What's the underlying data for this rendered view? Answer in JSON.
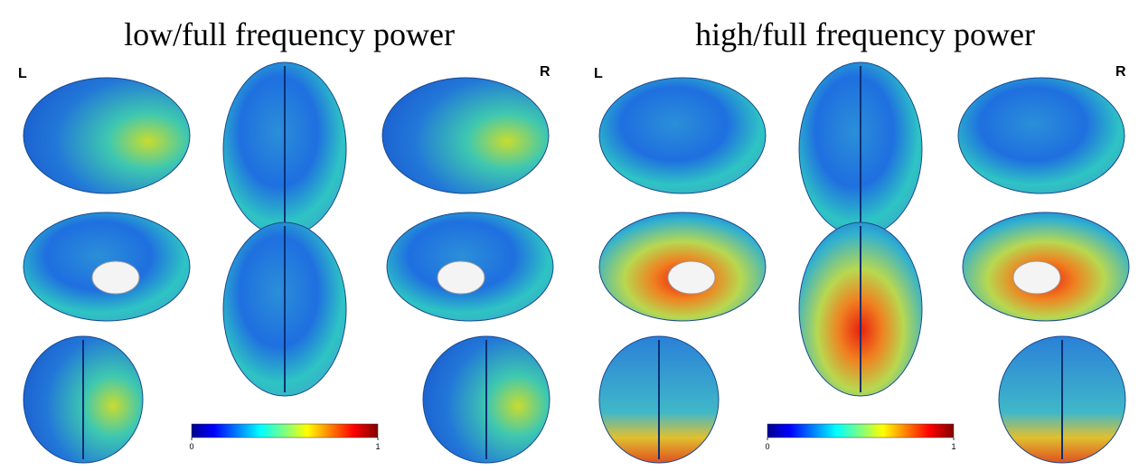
{
  "panels": [
    {
      "title": "low/full frequency power",
      "left_label": "L",
      "right_label": "R",
      "colorbar": {
        "ticks": [
          0,
          1
        ]
      }
    },
    {
      "title": "high/full frequency power",
      "left_label": "L",
      "right_label": "R",
      "colorbar": {
        "ticks": [
          0,
          1
        ]
      }
    }
  ]
}
